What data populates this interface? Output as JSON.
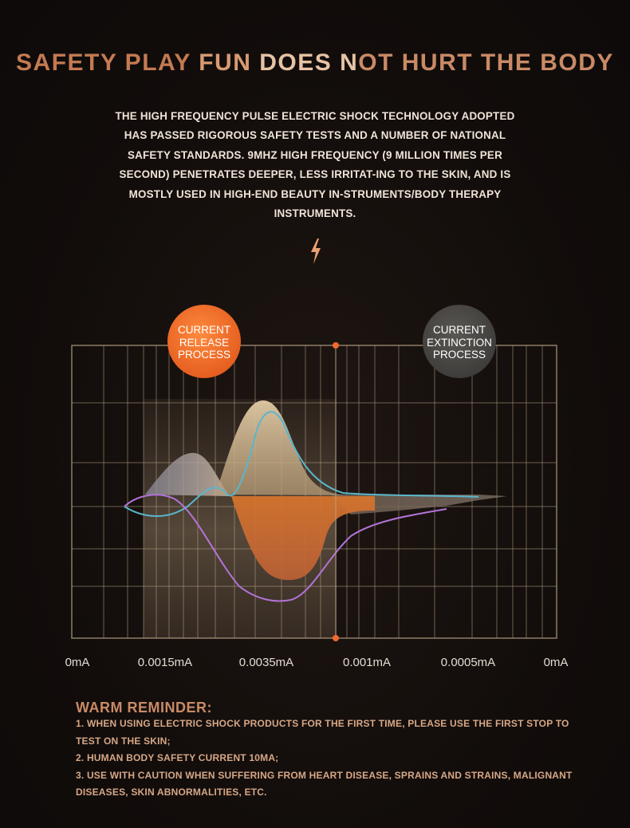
{
  "title": {
    "part1": "SAFETY PLAY ",
    "part2": "FUN ",
    "part3": "DOES ",
    "part4": "N",
    "part5": "OT HURT THE BODY"
  },
  "intro": "THE HIGH FREQUENCY PULSE ELECTRIC SHOCK TECHNOLOGY ADOPTED HAS PASSED RIGOROUS SAFETY TESTS AND A NUMBER OF NATIONAL SAFETY STANDARDS. 9MHZ HIGH FREQUENCY (9 MILLION TIMES PER SECOND) PENETRATES DEEPER, LESS IRRITAT-ING TO THE SKIN, AND IS MOSTLY USED IN HIGH-END BEAUTY IN-STRUMENTS/BODY THERAPY INSTRUMENTS.",
  "icons": {
    "bolt": "lightning-bolt-icon"
  },
  "chart": {
    "release_badge": {
      "line1": "CURRENT",
      "line2": "RELEASE",
      "line3": "PROCESS",
      "color": "#ee6b2a"
    },
    "extinction_badge": {
      "line1": "CURRENT",
      "line2": "EXTINCTION",
      "line3": "PROCESS",
      "color": "#4a4744"
    },
    "x_labels": [
      "0mA",
      "0.0015mA",
      "0.0035mA",
      "0.001mA",
      "0.0005mA",
      "0mA"
    ],
    "colors": {
      "grid": "#b8a285",
      "accent": "#ef6a2d",
      "cyan": "#5ab6cc",
      "purple": "#b374d8"
    }
  },
  "reminder": {
    "title": "WARM REMINDER:",
    "items": [
      "1. WHEN USING ELECTRIC SHOCK PRODUCTS FOR THE FIRST TIME, PLEASE USE THE FIRST STOP TO TEST ON THE SKIN;",
      "2. HUMAN BODY SAFETY CURRENT 10MA;",
      "3. USE WITH CAUTION WHEN SUFFERING FROM HEART DISEASE, SPRAINS AND STRAINS, MALIGNANT DISEASES, SKIN ABNORMALITIES, ETC."
    ]
  }
}
